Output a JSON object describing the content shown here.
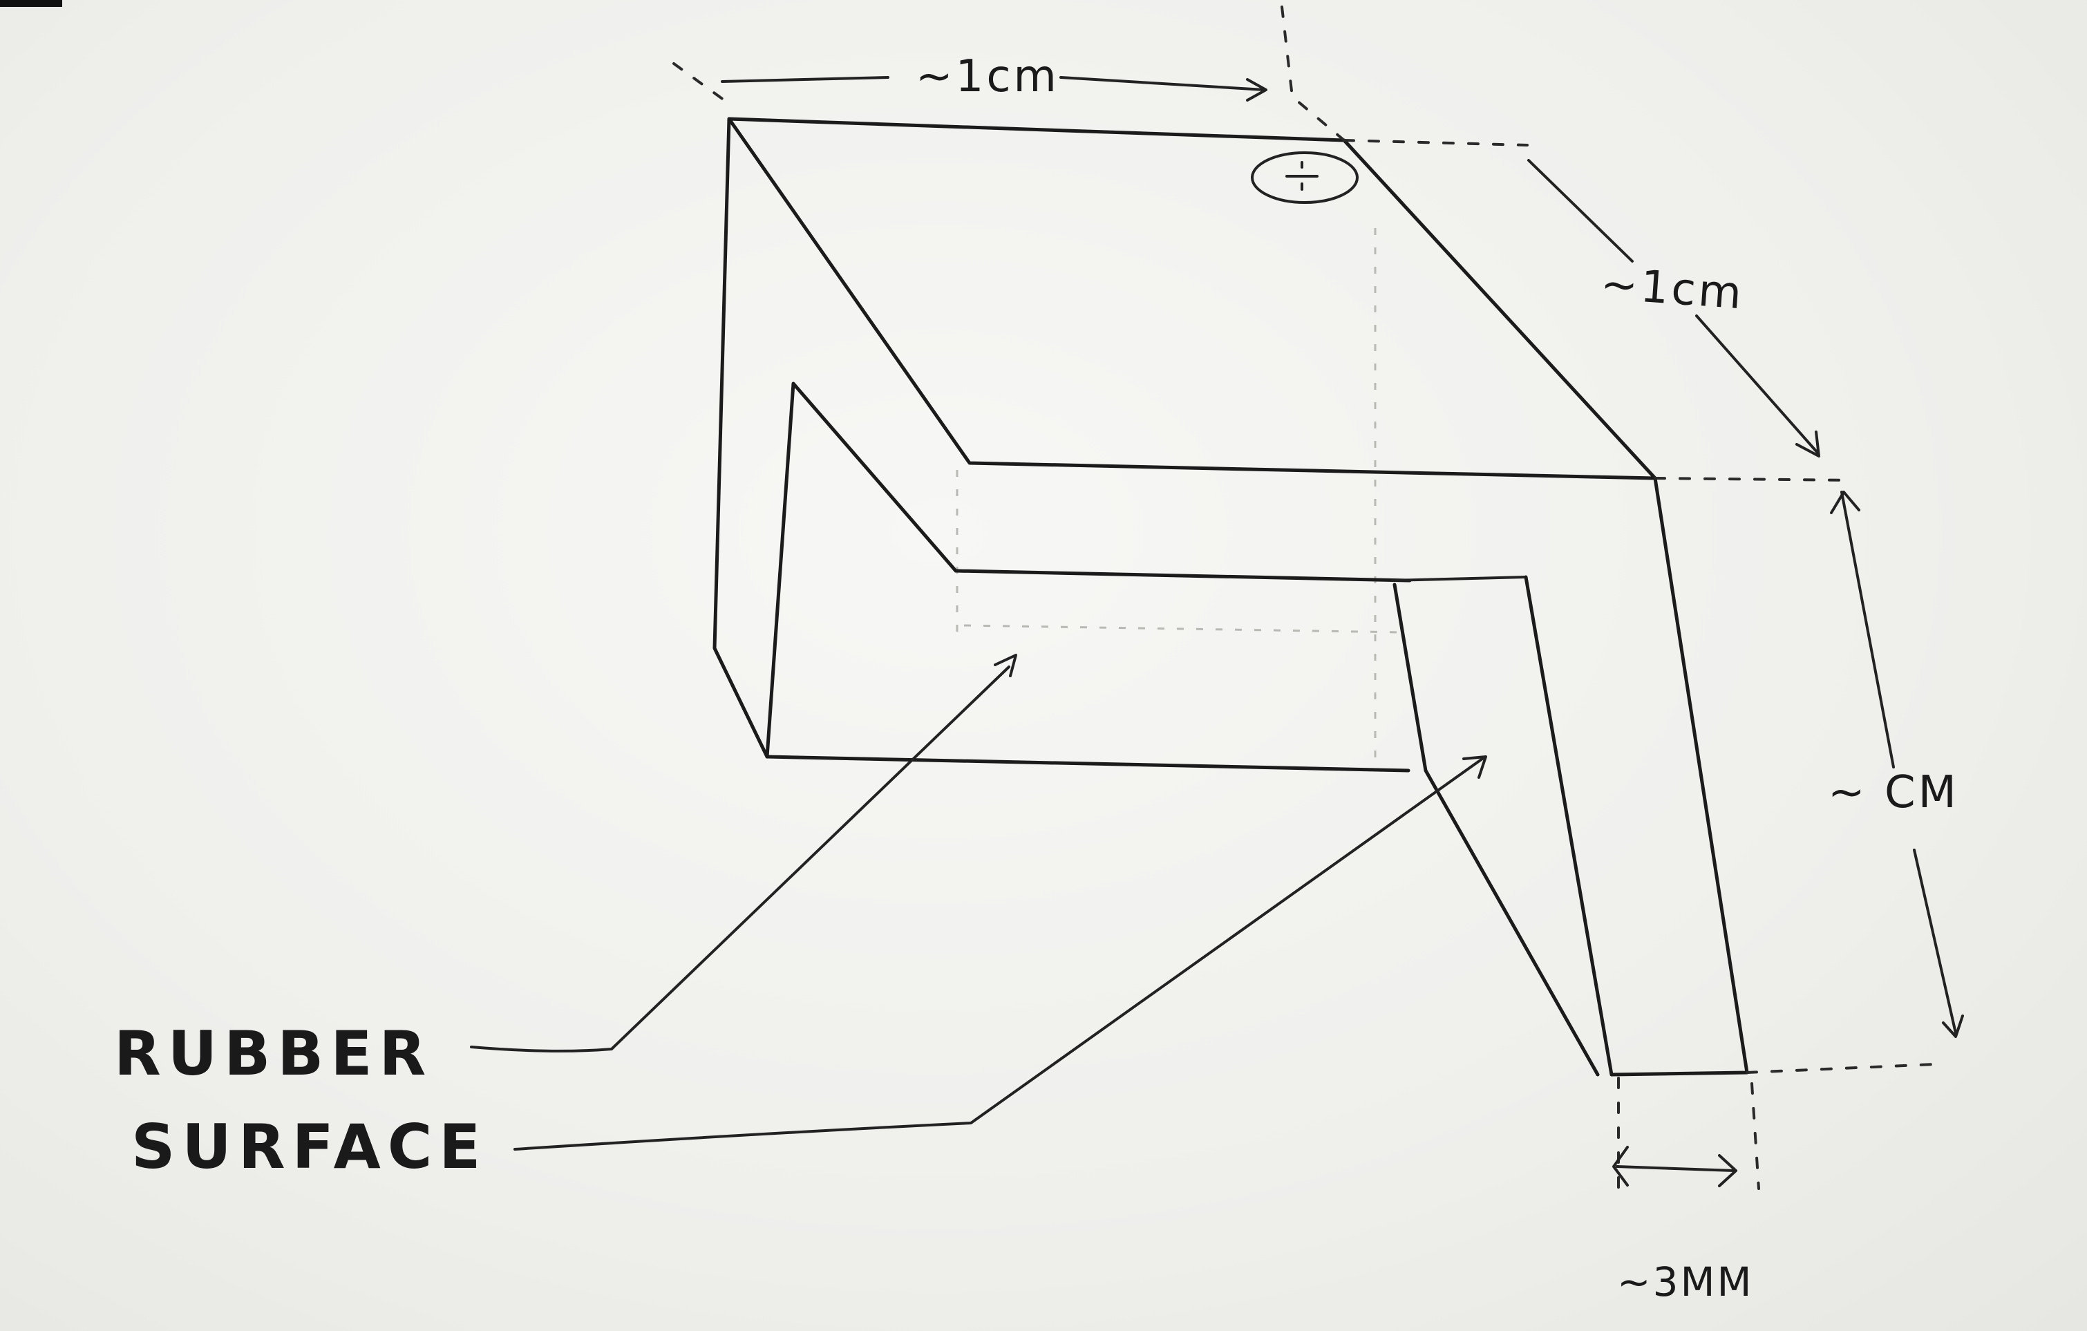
{
  "annotations": {
    "width_label": "~1cm",
    "depth_label": "~1cm",
    "height_label": "~ CM",
    "thickness_label": "~3MM",
    "material_label_line1": "RUBBER",
    "material_label_line2": "SURFACE"
  }
}
